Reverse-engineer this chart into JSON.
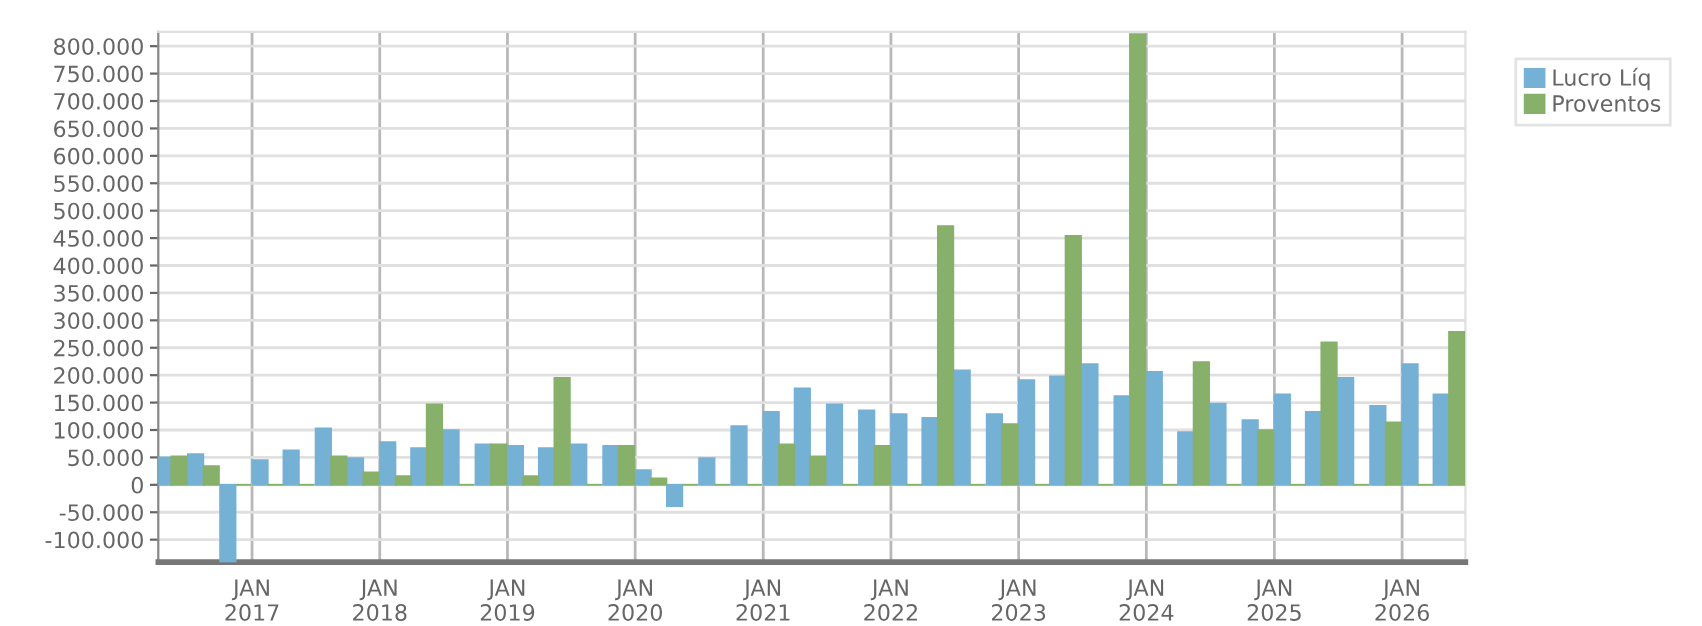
{
  "chart_data": {
    "type": "bar",
    "x": [
      "2016-05-15",
      "2016-08-15",
      "2016-11-15",
      "2017-02-15",
      "2017-05-15",
      "2017-08-15",
      "2017-11-15",
      "2018-02-15",
      "2018-05-15",
      "2018-08-15",
      "2018-11-15",
      "2019-02-15",
      "2019-05-15",
      "2019-08-15",
      "2019-11-15",
      "2020-02-15",
      "2020-05-15",
      "2020-08-15",
      "2020-11-15",
      "2021-02-15",
      "2021-05-15",
      "2021-08-15",
      "2021-11-15",
      "2022-02-15",
      "2022-05-15",
      "2022-08-15",
      "2022-11-15",
      "2023-02-15",
      "2023-05-15",
      "2023-08-15",
      "2023-11-15",
      "2024-02-15",
      "2024-05-15",
      "2024-08-15",
      "2024-11-15",
      "2025-02-15",
      "2025-05-15",
      "2025-08-15",
      "2025-11-15",
      "2026-02-15",
      "2026-05-15"
    ],
    "series": [
      {
        "name": "Lucro Líq",
        "color": "#75b1d4",
        "values": [
          50000,
          56000,
          -141000,
          45000,
          63000,
          103000,
          49000,
          78000,
          67000,
          100000,
          74000,
          71000,
          67000,
          74000,
          71000,
          27000,
          -39000,
          49000,
          107000,
          133000,
          176000,
          147000,
          136000,
          129000,
          122000,
          209000,
          129000,
          191000,
          198000,
          220000,
          162000,
          206000,
          96000,
          148000,
          118000,
          165000,
          133000,
          195000,
          144000,
          220000,
          165000
        ]
      },
      {
        "name": "Proventos",
        "color": "#87b06a",
        "values": [
          52000,
          34000,
          0,
          0,
          0,
          52000,
          23000,
          16000,
          147000,
          0,
          74000,
          16000,
          195000,
          0,
          71000,
          12000,
          0,
          0,
          0,
          74000,
          52000,
          0,
          71000,
          0,
          472000,
          0,
          111000,
          0,
          454000,
          0,
          822000,
          0,
          224000,
          0,
          100000,
          0,
          260000,
          0,
          114000,
          0,
          279000
        ]
      }
    ],
    "xlim": [
      "2016-04-08",
      "2026-07-01"
    ],
    "xticks": [
      {
        "value": "2017-01-01",
        "label": "JAN\n2017"
      },
      {
        "value": "2018-01-01",
        "label": "JAN\n2018"
      },
      {
        "value": "2019-01-01",
        "label": "JAN\n2019"
      },
      {
        "value": "2020-01-01",
        "label": "JAN\n2020"
      },
      {
        "value": "2021-01-01",
        "label": "JAN\n2021"
      },
      {
        "value": "2022-01-01",
        "label": "JAN\n2022"
      },
      {
        "value": "2023-01-01",
        "label": "JAN\n2023"
      },
      {
        "value": "2024-01-01",
        "label": "JAN\n2024"
      },
      {
        "value": "2025-01-01",
        "label": "JAN\n2025"
      },
      {
        "value": "2026-01-01",
        "label": "JAN\n2026"
      }
    ],
    "ylim": [
      -141000,
      826000
    ],
    "yticks": [
      {
        "value": -100000,
        "label": "-100.000"
      },
      {
        "value": -50000,
        "label": "-50.000"
      },
      0,
      {
        "value": 50000,
        "label": "50.000"
      },
      {
        "value": 100000,
        "label": "100.000"
      },
      {
        "value": 150000,
        "label": "150.000"
      },
      {
        "value": 200000,
        "label": "200.000"
      },
      {
        "value": 250000,
        "label": "250.000"
      },
      {
        "value": 300000,
        "label": "300.000"
      },
      {
        "value": 350000,
        "label": "350.000"
      },
      {
        "value": 400000,
        "label": "400.000"
      },
      {
        "value": 450000,
        "label": "450.000"
      },
      {
        "value": 500000,
        "label": "500.000"
      },
      {
        "value": 550000,
        "label": "550.000"
      },
      {
        "value": 600000,
        "label": "600.000"
      },
      {
        "value": 650000,
        "label": "650.000"
      },
      {
        "value": 700000,
        "label": "700.000"
      },
      {
        "value": 750000,
        "label": "750.000"
      },
      {
        "value": 800000,
        "label": "800.000"
      }
    ],
    "grid": true,
    "legend": "top right"
  }
}
